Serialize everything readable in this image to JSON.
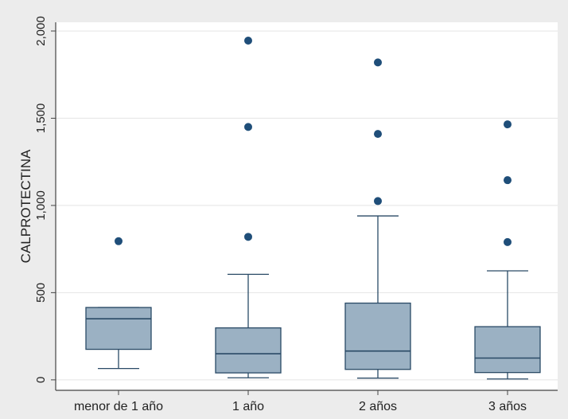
{
  "chart_data": {
    "type": "box",
    "title": "",
    "xlabel": "",
    "ylabel": "CALPROTECTINA",
    "ylim": [
      -60,
      2050
    ],
    "yticks": [
      0,
      500,
      1000,
      1500,
      2000
    ],
    "ytick_labels": [
      "0",
      "500",
      "1,000",
      "1,500",
      "2,000"
    ],
    "grid": true,
    "categories": [
      "menor de 1 año",
      "1 año",
      "2 años",
      "3 años"
    ],
    "boxes": [
      {
        "whisker_low": 65,
        "q1": 175,
        "median": 350,
        "q3": 415,
        "whisker_high": 415,
        "outliers": [
          795
        ]
      },
      {
        "whisker_low": 12,
        "q1": 40,
        "median": 150,
        "q3": 298,
        "whisker_high": 605,
        "outliers": [
          820,
          1450,
          1945
        ]
      },
      {
        "whisker_low": 10,
        "q1": 60,
        "median": 165,
        "q3": 440,
        "whisker_high": 940,
        "outliers": [
          1025,
          1410,
          1820
        ]
      },
      {
        "whisker_low": 5,
        "q1": 42,
        "median": 125,
        "q3": 305,
        "whisker_high": 625,
        "outliers": [
          790,
          1145,
          1465
        ]
      }
    ],
    "colors": {
      "box_fill": "#9bb1c3",
      "box_stroke": "#2a4a66",
      "outlier": "#1f4e79",
      "plot_bg": "#ffffff",
      "page_bg": "#ececec",
      "grid": "#e4e4e4",
      "axis": "#444444"
    }
  }
}
